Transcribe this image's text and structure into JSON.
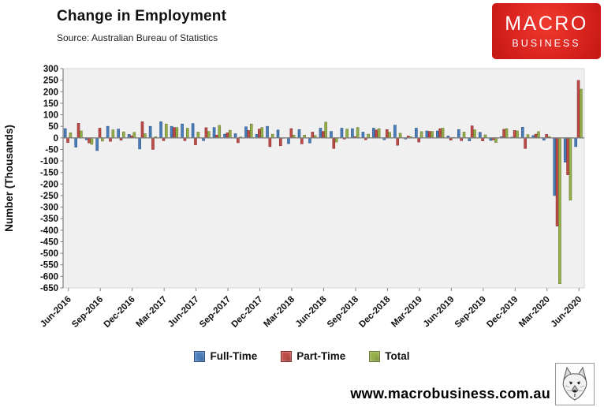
{
  "header": {
    "title": "Change in Employment",
    "subtitle": "Source: Australian Bureau of Statistics"
  },
  "logo": {
    "line1": "MACRO",
    "line2": "BUSINESS",
    "bg_color": "#d8201a"
  },
  "chart_data": {
    "type": "bar",
    "title": "Change in Employment",
    "xlabel": "",
    "ylabel": "Number (Thousands)",
    "ylim": [
      -650,
      300
    ],
    "ytick_step": 50,
    "grid": false,
    "legend_position": "bottom",
    "plot_bg_color": "#f0f0f0",
    "axis_color": "#7f7f7f",
    "categories": [
      "Jun-2016",
      "Jul-2016",
      "Aug-2016",
      "Sep-2016",
      "Oct-2016",
      "Nov-2016",
      "Dec-2016",
      "Jan-2017",
      "Feb-2017",
      "Mar-2017",
      "Apr-2017",
      "May-2017",
      "Jun-2017",
      "Jul-2017",
      "Aug-2017",
      "Sep-2017",
      "Oct-2017",
      "Nov-2017",
      "Dec-2017",
      "Jan-2018",
      "Feb-2018",
      "Mar-2018",
      "Apr-2018",
      "May-2018",
      "Jun-2018",
      "Jul-2018",
      "Aug-2018",
      "Sep-2018",
      "Oct-2018",
      "Nov-2018",
      "Dec-2018",
      "Jan-2019",
      "Feb-2019",
      "Mar-2019",
      "Apr-2019",
      "May-2019",
      "Jun-2019",
      "Jul-2019",
      "Aug-2019",
      "Sep-2019",
      "Oct-2019",
      "Nov-2019",
      "Dec-2019",
      "Jan-2020",
      "Feb-2020",
      "Mar-2020",
      "Apr-2020",
      "May-2020",
      "Jun-2020"
    ],
    "x_tick_labels": [
      "Jun-2016",
      "Sep-2016",
      "Dec-2016",
      "Mar-2017",
      "Jun-2017",
      "Sep-2017",
      "Dec-2017",
      "Mar-2018",
      "Jun-2018",
      "Sep-2018",
      "Dec-2018",
      "Mar-2019",
      "Jun-2019",
      "Sep-2019",
      "Dec-2019",
      "Mar-2020",
      "Jun-2020"
    ],
    "series": [
      {
        "name": "Full-Time",
        "color": "#4a7ebb",
        "edge_color": "#2e5384",
        "values": [
          40,
          -40,
          -8,
          -55,
          50,
          38,
          15,
          -48,
          50,
          70,
          50,
          60,
          62,
          -12,
          45,
          16,
          18,
          48,
          15,
          50,
          34,
          -25,
          36,
          -22,
          42,
          28,
          42,
          40,
          25,
          42,
          -8,
          55,
          -5,
          42,
          30,
          30,
          8,
          36,
          -13,
          24,
          -11,
          5,
          3,
          46,
          10,
          -10,
          -250,
          -105,
          -38
        ]
      },
      {
        "name": "Part-Time",
        "color": "#bf4b48",
        "edge_color": "#8a2f2d",
        "values": [
          -20,
          63,
          -22,
          42,
          -15,
          -10,
          9,
          70,
          -50,
          -12,
          45,
          -12,
          -30,
          44,
          12,
          22,
          -21,
          32,
          38,
          -38,
          -34,
          40,
          -26,
          25,
          28,
          -46,
          -5,
          5,
          -8,
          34,
          36,
          -32,
          8,
          -18,
          28,
          40,
          -10,
          -12,
          52,
          -13,
          -9,
          37,
          32,
          -46,
          16,
          15,
          -382,
          -160,
          249
        ]
      },
      {
        "name": "Total",
        "color": "#95ae48",
        "edge_color": "#697c31",
        "values": [
          22,
          30,
          -28,
          -14,
          35,
          26,
          24,
          18,
          5,
          60,
          45,
          42,
          25,
          28,
          54,
          33,
          4,
          60,
          45,
          16,
          -2,
          12,
          12,
          10,
          68,
          -18,
          38,
          45,
          16,
          40,
          24,
          20,
          5,
          27,
          28,
          42,
          2,
          25,
          35,
          13,
          -20,
          40,
          30,
          14,
          27,
          6,
          -632,
          -270,
          211
        ]
      }
    ]
  },
  "footer": {
    "url": "www.macrobusiness.com.au",
    "wolf_icon": "wolf-logo"
  }
}
